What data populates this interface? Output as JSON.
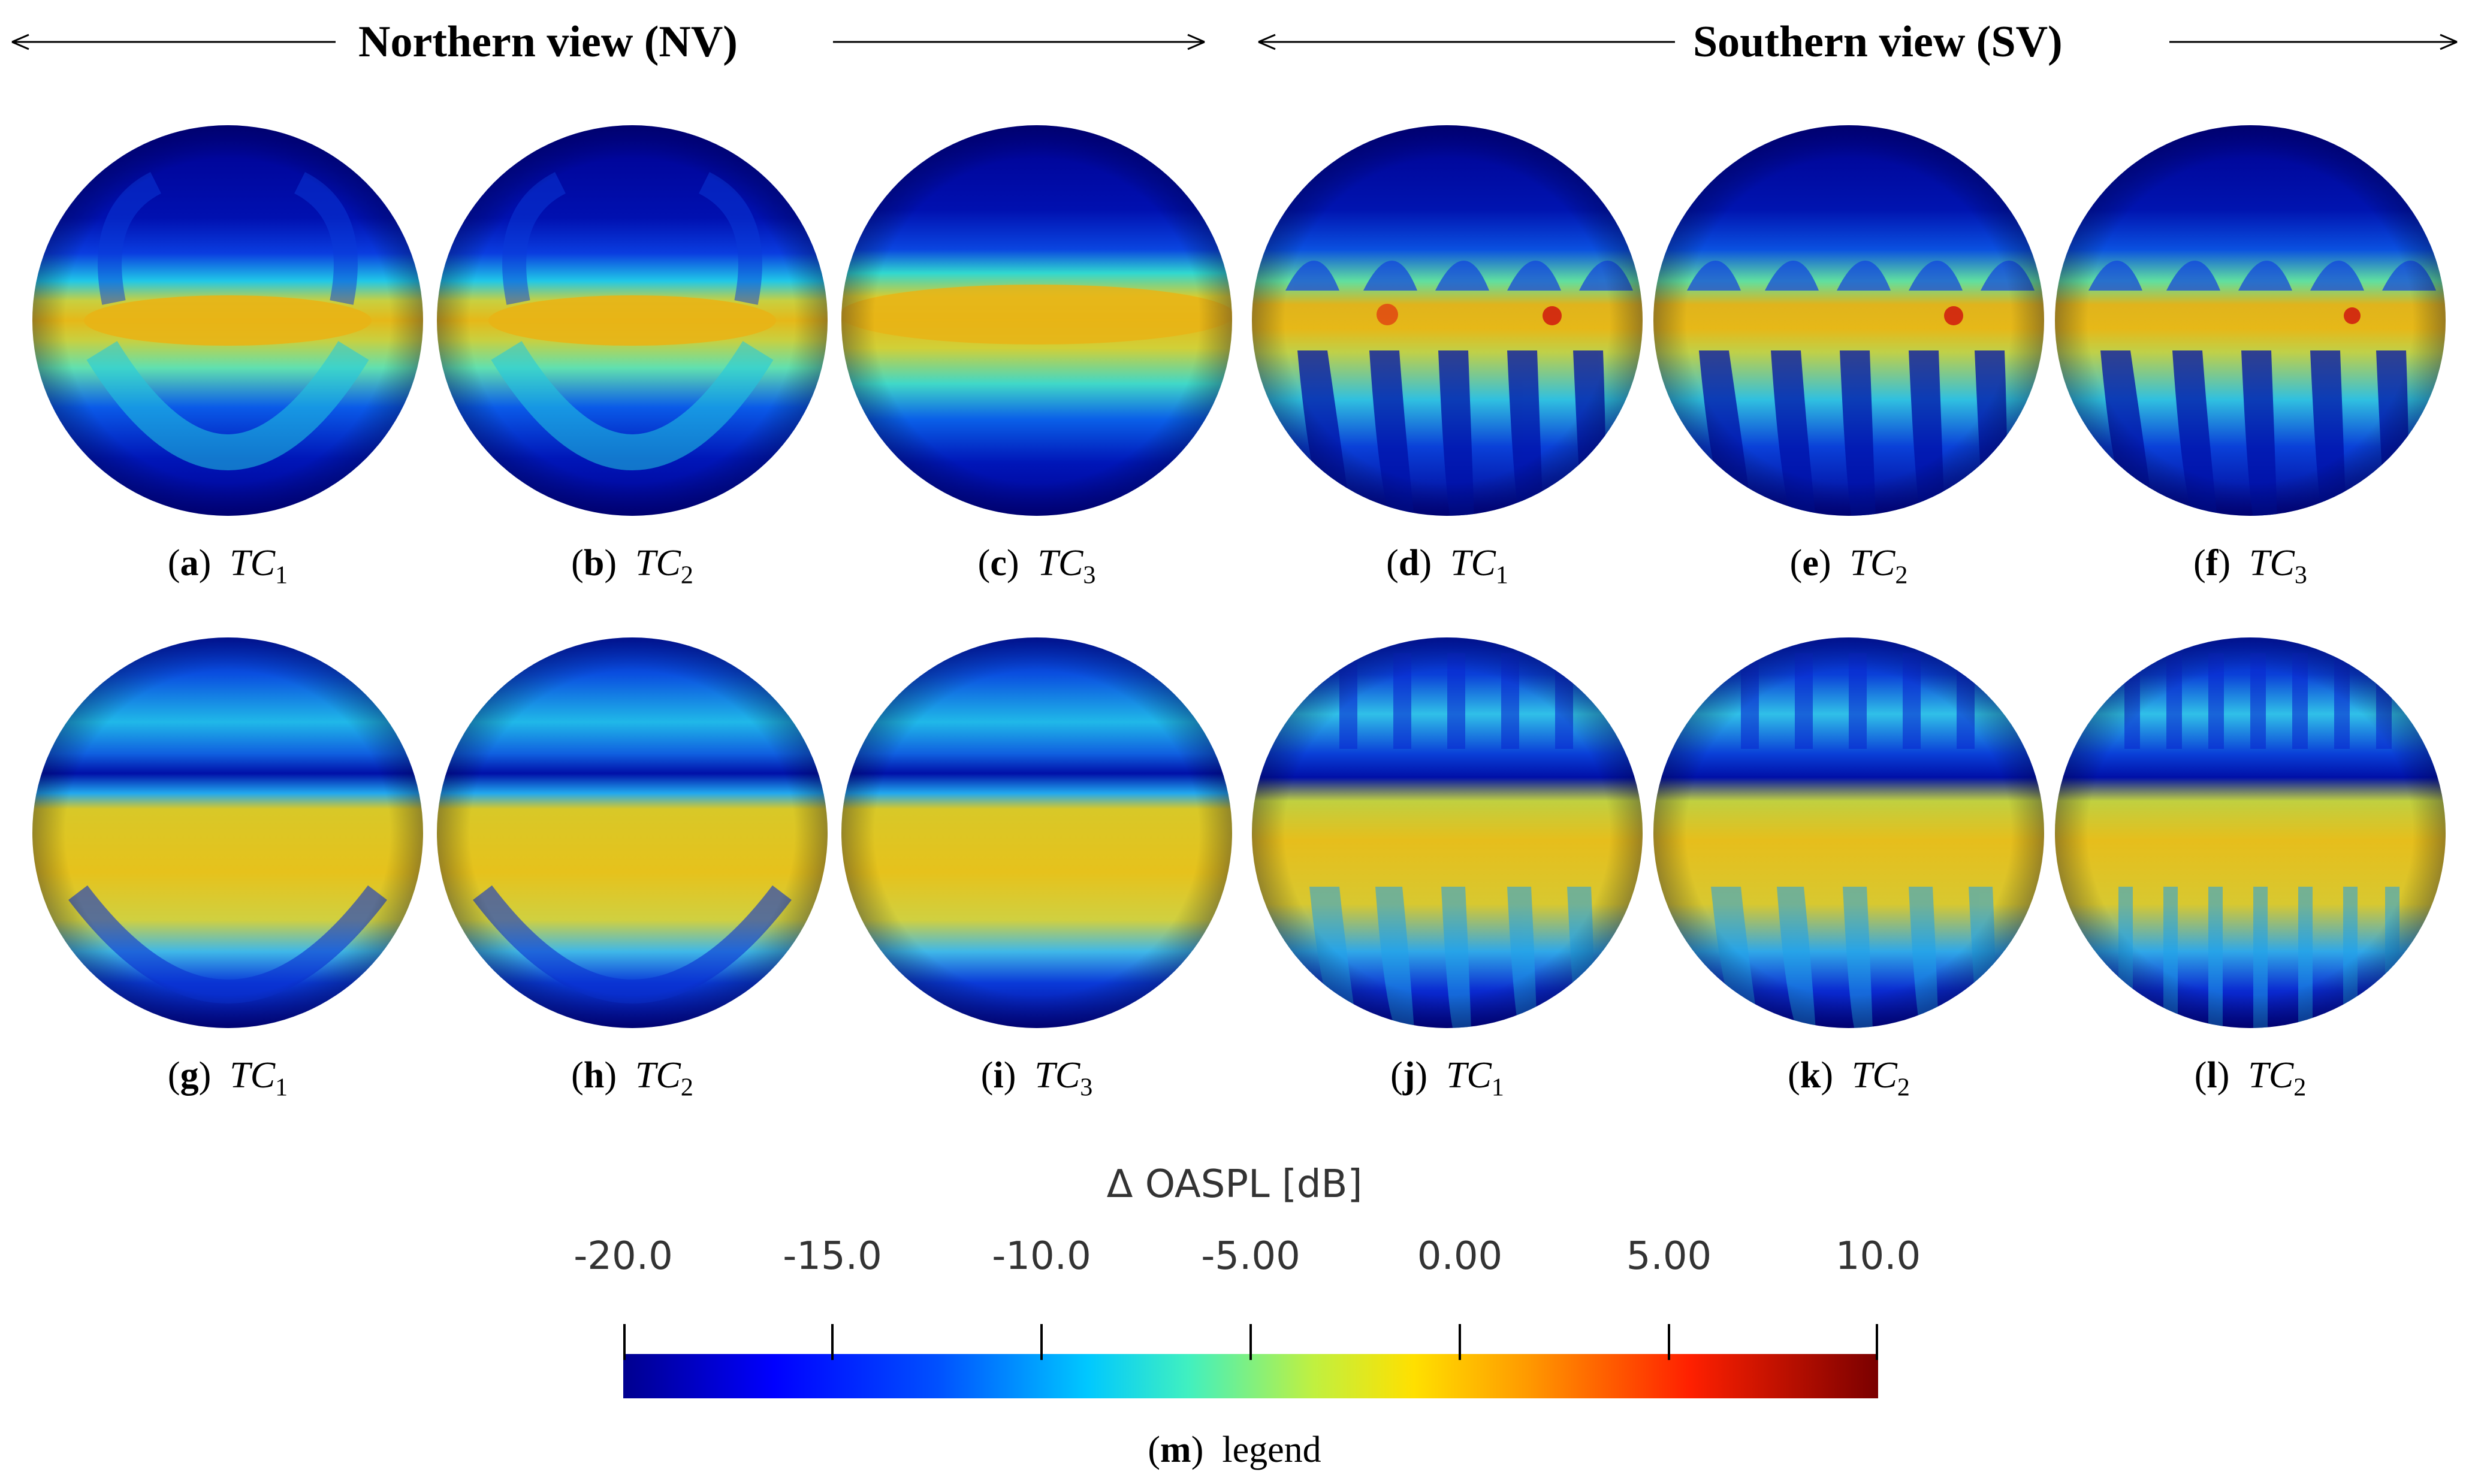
{
  "header": {
    "north_title": "Northern view (NV)",
    "south_title": "Southern view (SV)"
  },
  "panels_row1": [
    {
      "letter": "a",
      "tc": "TC",
      "sub": "1"
    },
    {
      "letter": "b",
      "tc": "TC",
      "sub": "2"
    },
    {
      "letter": "c",
      "tc": "TC",
      "sub": "3"
    },
    {
      "letter": "d",
      "tc": "TC",
      "sub": "1"
    },
    {
      "letter": "e",
      "tc": "TC",
      "sub": "2"
    },
    {
      "letter": "f",
      "tc": "TC",
      "sub": "3"
    }
  ],
  "panels_row2": [
    {
      "letter": "g",
      "tc": "TC",
      "sub": "1"
    },
    {
      "letter": "h",
      "tc": "TC",
      "sub": "2"
    },
    {
      "letter": "i",
      "tc": "TC",
      "sub": "3"
    },
    {
      "letter": "j",
      "tc": "TC",
      "sub": "1"
    },
    {
      "letter": "k",
      "tc": "TC",
      "sub": "2"
    },
    {
      "letter": "l",
      "tc": "TC",
      "sub": "2"
    }
  ],
  "legend": {
    "title": "Δ OASPL [dB]",
    "ticks": [
      "-20.0",
      "-15.0",
      "-10.0",
      "-5.00",
      "0.00",
      "5.00",
      "10.0"
    ],
    "min": -20,
    "max": 10,
    "caption_letter": "m",
    "caption_text": "legend"
  },
  "colors": {
    "dark_blue": "#00008f",
    "blue": "#0a2fd8",
    "cyan": "#20e0ff",
    "green": "#6fe890",
    "yellow": "#e6c81e",
    "orange": "#f08a10",
    "red": "#d01010",
    "dark_red": "#7a0000"
  }
}
